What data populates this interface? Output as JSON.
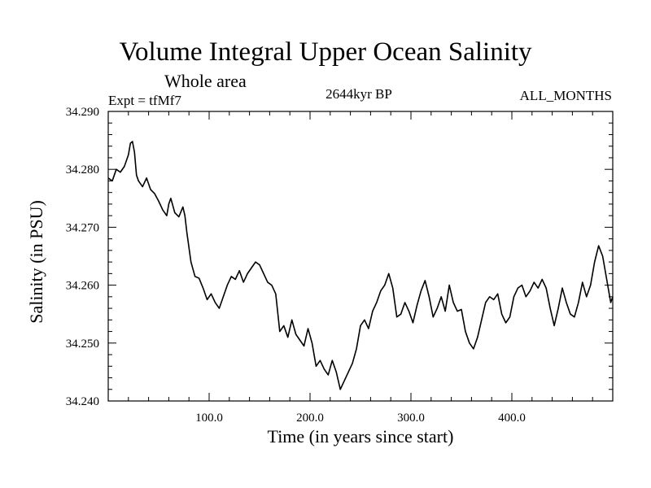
{
  "chart_data": {
    "type": "line",
    "title": "Volume Integral Upper Ocean Salinity",
    "subtitle": "Whole area",
    "experiment_label": "Expt = tfMf7",
    "center_label": "2644kyr BP",
    "right_label": "ALL_MONTHS",
    "xlabel": "Time (in years since start)",
    "ylabel": "Salinity (in PSU)",
    "xlim": [
      0,
      500
    ],
    "ylim": [
      34.24,
      34.29
    ],
    "xticks": [
      100,
      200,
      300,
      400
    ],
    "xtick_labels": [
      "100.0",
      "200.0",
      "300.0",
      "400.0"
    ],
    "yticks": [
      34.24,
      34.25,
      34.26,
      34.27,
      34.28,
      34.29
    ],
    "ytick_labels": [
      "34.240",
      "34.250",
      "34.260",
      "34.270",
      "34.280",
      "34.290"
    ],
    "grid": false,
    "series": [
      {
        "name": "Salinity",
        "color": "#000000",
        "x": [
          0,
          4,
          8,
          12,
          16,
          20,
          22,
          24,
          26,
          28,
          30,
          34,
          38,
          42,
          46,
          50,
          54,
          58,
          60,
          62,
          66,
          70,
          74,
          76,
          78,
          82,
          86,
          90,
          94,
          98,
          102,
          106,
          110,
          114,
          118,
          122,
          126,
          130,
          134,
          138,
          142,
          146,
          150,
          154,
          158,
          162,
          166,
          170,
          174,
          178,
          182,
          186,
          190,
          194,
          198,
          202,
          206,
          210,
          214,
          218,
          222,
          226,
          230,
          234,
          238,
          242,
          246,
          250,
          254,
          258,
          262,
          266,
          270,
          274,
          278,
          282,
          286,
          290,
          294,
          298,
          302,
          306,
          310,
          314,
          318,
          322,
          326,
          330,
          334,
          338,
          342,
          346,
          350,
          354,
          358,
          362,
          366,
          370,
          374,
          378,
          382,
          386,
          390,
          394,
          398,
          402,
          406,
          410,
          414,
          418,
          422,
          426,
          430,
          434,
          438,
          442,
          446,
          450,
          454,
          458,
          462,
          466,
          470,
          474,
          478,
          482,
          486,
          490,
          494,
          498,
          500
        ],
        "y": [
          34.2785,
          34.278,
          34.28,
          34.2795,
          34.2805,
          34.2825,
          34.2845,
          34.2848,
          34.283,
          34.279,
          34.278,
          34.277,
          34.2785,
          34.2765,
          34.2758,
          34.2745,
          34.273,
          34.272,
          34.274,
          34.275,
          34.2725,
          34.2718,
          34.2735,
          34.272,
          34.269,
          34.264,
          34.2615,
          34.2612,
          34.2595,
          34.2575,
          34.2585,
          34.257,
          34.256,
          34.258,
          34.26,
          34.2615,
          34.261,
          34.2625,
          34.2605,
          34.262,
          34.263,
          34.264,
          34.2635,
          34.262,
          34.2605,
          34.26,
          34.2585,
          34.252,
          34.253,
          34.251,
          34.254,
          34.2515,
          34.2505,
          34.2495,
          34.2525,
          34.25,
          34.246,
          34.247,
          34.2455,
          34.2445,
          34.247,
          34.245,
          34.242,
          34.2435,
          34.245,
          34.2465,
          34.249,
          34.253,
          34.254,
          34.2525,
          34.2555,
          34.257,
          34.259,
          34.26,
          34.262,
          34.2595,
          34.2545,
          34.255,
          34.257,
          34.2555,
          34.2535,
          34.2565,
          34.259,
          34.2608,
          34.258,
          34.2545,
          34.256,
          34.258,
          34.2555,
          34.26,
          34.257,
          34.2555,
          34.2558,
          34.252,
          34.25,
          34.249,
          34.251,
          34.254,
          34.257,
          34.258,
          34.2575,
          34.2585,
          34.255,
          34.2535,
          34.2545,
          34.258,
          34.2595,
          34.26,
          34.258,
          34.259,
          34.2605,
          34.2595,
          34.261,
          34.2595,
          34.256,
          34.253,
          34.256,
          34.2595,
          34.257,
          34.255,
          34.2545,
          34.257,
          34.2605,
          34.258,
          34.26,
          34.264,
          34.2668,
          34.265,
          34.261,
          34.257,
          34.258
        ]
      }
    ]
  }
}
